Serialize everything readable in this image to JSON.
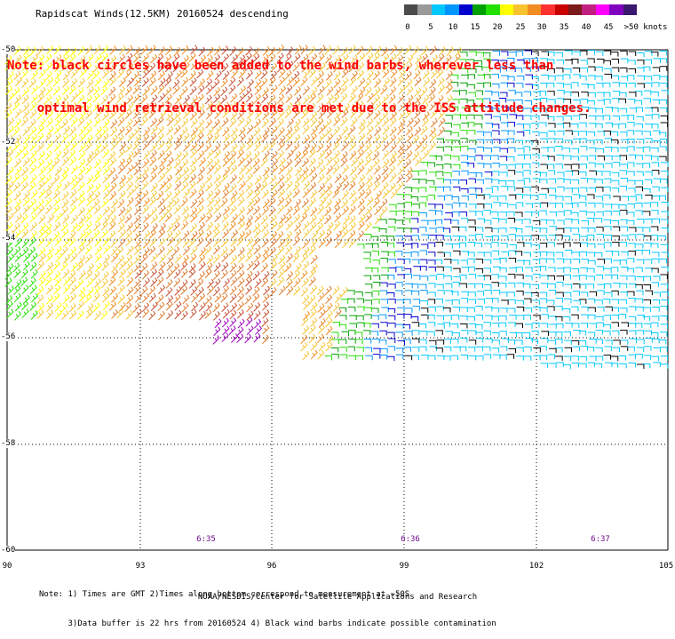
{
  "title": "Rapidscat Winds(12.5KM) 20160524 descending",
  "note_lines": [
    "Note: black circles have been added to the wind barbs, wherever less than",
    "    optimal wind retrieval conditions are met due to the ISS attitude changes."
  ],
  "legend": {
    "colors": [
      "#4b4b4b",
      "#9a9a9a",
      "#00c8ff",
      "#0096ff",
      "#0000cd",
      "#00a000",
      "#22e000",
      "#ffff00",
      "#f7c430",
      "#f08c20",
      "#ff3030",
      "#c80000",
      "#7a1a1a",
      "#c02080",
      "#ff00ff",
      "#8000c0",
      "#3a1870"
    ],
    "labels": [
      "0",
      "5",
      "10",
      "15",
      "20",
      "25",
      "30",
      "35",
      "40",
      "45",
      ">50 knots"
    ]
  },
  "axes": {
    "y_ticks": [
      "-50",
      "-52",
      "-54",
      "-56",
      "-58",
      "-60"
    ],
    "x_ticks": [
      "90",
      "93",
      "96",
      "99",
      "102",
      "105"
    ],
    "lat_range": [
      -60,
      -50
    ],
    "lon_range": [
      90,
      105
    ]
  },
  "time_labels": [
    "6:35",
    "6:36",
    "6:37"
  ],
  "footer_notes": [
    "Note: 1) Times are GMT 2)Times along bottom correspond to measurement at ~50S",
    "      3)Data buffer is 22 hrs from 20160524 4) Black wind barbs indicate possible contamination"
  ],
  "credit": "NOAA/NESDIS/Center for Satellite Applications and Research",
  "barb_color_scheme": {
    "west": [
      "#f7c430",
      "#f08c20",
      "#e07a2a",
      "#c85030",
      "#ffff00",
      "#22e000"
    ],
    "east": [
      "#00c8ff",
      "#0096ff",
      "#0000cd",
      "#00a000",
      "#22e000",
      "#000000"
    ]
  }
}
